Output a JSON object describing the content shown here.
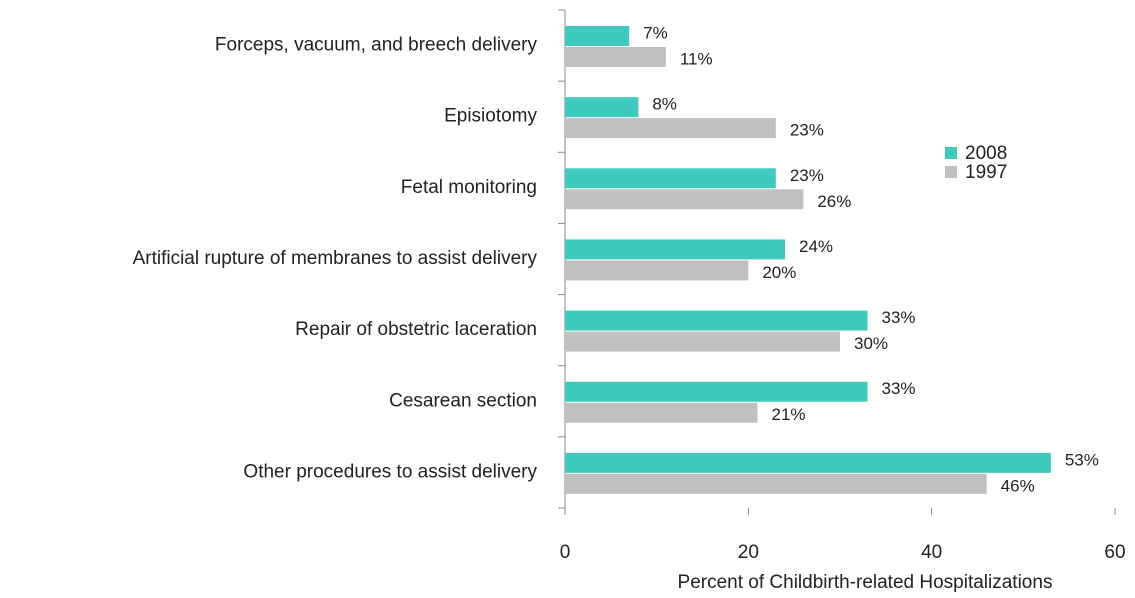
{
  "chart_data": {
    "type": "bar",
    "orientation": "horizontal",
    "xlabel": "Percent of Childbirth-related Hospitalizations",
    "categories": [
      "Forceps, vacuum, and breech delivery",
      "Episiotomy",
      "Fetal monitoring",
      "Artificial rupture of membranes to assist delivery",
      "Repair of obstetric laceration",
      "Cesarean section",
      "Other procedures to assist delivery"
    ],
    "series": [
      {
        "name": "2008",
        "color": "#40c9bd",
        "values": [
          7,
          8,
          23,
          24,
          33,
          33,
          53
        ],
        "value_labels": [
          "7%",
          "8%",
          "23%",
          "24%",
          "33%",
          "33%",
          "53%"
        ]
      },
      {
        "name": "1997",
        "color": "#c0c0c0",
        "values": [
          11,
          23,
          26,
          20,
          30,
          21,
          46
        ],
        "value_labels": [
          "11%",
          "23%",
          "26%",
          "20%",
          "30%",
          "21%",
          "46%"
        ]
      }
    ],
    "xlim": [
      0,
      60
    ],
    "xticks": [
      0,
      20,
      40,
      60
    ],
    "legend": "right"
  }
}
